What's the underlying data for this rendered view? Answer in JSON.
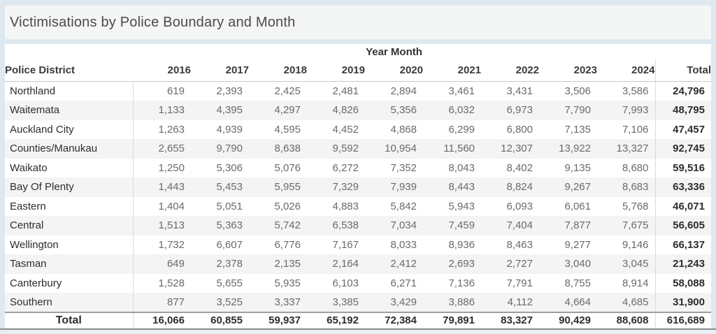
{
  "title": "Victimisations by Police Boundary and Month",
  "table": {
    "group_header": "Year Month",
    "district_header": "Police District",
    "year_columns": [
      "2016",
      "2017",
      "2018",
      "2019",
      "2020",
      "2021",
      "2022",
      "2023",
      "2024"
    ],
    "total_column_header": "Total",
    "rows": [
      {
        "district": "Northland",
        "values": [
          "619",
          "2,393",
          "2,425",
          "2,481",
          "2,894",
          "3,461",
          "3,431",
          "3,506",
          "3,586"
        ],
        "total": "24,796"
      },
      {
        "district": "Waitemata",
        "values": [
          "1,133",
          "4,395",
          "4,297",
          "4,826",
          "5,356",
          "6,032",
          "6,973",
          "7,790",
          "7,993"
        ],
        "total": "48,795"
      },
      {
        "district": "Auckland City",
        "values": [
          "1,263",
          "4,939",
          "4,595",
          "4,452",
          "4,868",
          "6,299",
          "6,800",
          "7,135",
          "7,106"
        ],
        "total": "47,457"
      },
      {
        "district": "Counties/Manukau",
        "values": [
          "2,655",
          "9,790",
          "8,638",
          "9,592",
          "10,954",
          "11,560",
          "12,307",
          "13,922",
          "13,327"
        ],
        "total": "92,745"
      },
      {
        "district": "Waikato",
        "values": [
          "1,250",
          "5,306",
          "5,076",
          "6,272",
          "7,352",
          "8,043",
          "8,402",
          "9,135",
          "8,680"
        ],
        "total": "59,516"
      },
      {
        "district": "Bay Of Plenty",
        "values": [
          "1,443",
          "5,453",
          "5,955",
          "7,329",
          "7,939",
          "8,443",
          "8,824",
          "9,267",
          "8,683"
        ],
        "total": "63,336"
      },
      {
        "district": "Eastern",
        "values": [
          "1,404",
          "5,051",
          "5,026",
          "4,883",
          "5,842",
          "5,943",
          "6,093",
          "6,061",
          "5,768"
        ],
        "total": "46,071"
      },
      {
        "district": "Central",
        "values": [
          "1,513",
          "5,363",
          "5,742",
          "6,538",
          "7,034",
          "7,459",
          "7,404",
          "7,877",
          "7,675"
        ],
        "total": "56,605"
      },
      {
        "district": "Wellington",
        "values": [
          "1,732",
          "6,607",
          "6,776",
          "7,167",
          "8,033",
          "8,936",
          "8,463",
          "9,277",
          "9,146"
        ],
        "total": "66,137"
      },
      {
        "district": "Tasman",
        "values": [
          "649",
          "2,378",
          "2,135",
          "2,164",
          "2,412",
          "2,693",
          "2,727",
          "3,040",
          "3,045"
        ],
        "total": "21,243"
      },
      {
        "district": "Canterbury",
        "values": [
          "1,528",
          "5,655",
          "5,935",
          "6,103",
          "6,271",
          "7,136",
          "7,791",
          "8,755",
          "8,914"
        ],
        "total": "58,088"
      },
      {
        "district": "Southern",
        "values": [
          "877",
          "3,525",
          "3,337",
          "3,385",
          "3,429",
          "3,886",
          "4,112",
          "4,664",
          "4,685"
        ],
        "total": "31,900"
      }
    ],
    "total_row": {
      "label": "Total",
      "values": [
        "16,066",
        "60,855",
        "59,937",
        "65,192",
        "72,384",
        "79,891",
        "83,327",
        "90,429",
        "88,608"
      ],
      "total": "616,689"
    }
  },
  "colors": {
    "page_bg": "#dee9ef",
    "panel_bg": "#f4f5f5",
    "row_band": "#f4f4f4",
    "grid_line": "#d9d9d9",
    "total_separator": "#9e9e9e",
    "bottom_border": "#8c8c8c"
  },
  "chart_data": {
    "type": "table",
    "title": "Victimisations by Police Boundary and Month",
    "column_group_label": "Year Month",
    "row_group_label": "Police District",
    "categories": [
      2016,
      2017,
      2018,
      2019,
      2020,
      2021,
      2022,
      2023,
      2024
    ],
    "series": [
      {
        "name": "Northland",
        "values": [
          619,
          2393,
          2425,
          2481,
          2894,
          3461,
          3431,
          3506,
          3586
        ],
        "total": 24796
      },
      {
        "name": "Waitemata",
        "values": [
          1133,
          4395,
          4297,
          4826,
          5356,
          6032,
          6973,
          7790,
          7993
        ],
        "total": 48795
      },
      {
        "name": "Auckland City",
        "values": [
          1263,
          4939,
          4595,
          4452,
          4868,
          6299,
          6800,
          7135,
          7106
        ],
        "total": 47457
      },
      {
        "name": "Counties/Manukau",
        "values": [
          2655,
          9790,
          8638,
          9592,
          10954,
          11560,
          12307,
          13922,
          13327
        ],
        "total": 92745
      },
      {
        "name": "Waikato",
        "values": [
          1250,
          5306,
          5076,
          6272,
          7352,
          8043,
          8402,
          9135,
          8680
        ],
        "total": 59516
      },
      {
        "name": "Bay Of Plenty",
        "values": [
          1443,
          5453,
          5955,
          7329,
          7939,
          8443,
          8824,
          9267,
          8683
        ],
        "total": 63336
      },
      {
        "name": "Eastern",
        "values": [
          1404,
          5051,
          5026,
          4883,
          5842,
          5943,
          6093,
          6061,
          5768
        ],
        "total": 46071
      },
      {
        "name": "Central",
        "values": [
          1513,
          5363,
          5742,
          6538,
          7034,
          7459,
          7404,
          7877,
          7675
        ],
        "total": 56605
      },
      {
        "name": "Wellington",
        "values": [
          1732,
          6607,
          6776,
          7167,
          8033,
          8936,
          8463,
          9277,
          9146
        ],
        "total": 66137
      },
      {
        "name": "Tasman",
        "values": [
          649,
          2378,
          2135,
          2164,
          2412,
          2693,
          2727,
          3040,
          3045
        ],
        "total": 21243
      },
      {
        "name": "Canterbury",
        "values": [
          1528,
          5655,
          5935,
          6103,
          6271,
          7136,
          7791,
          8755,
          8914
        ],
        "total": 58088
      },
      {
        "name": "Southern",
        "values": [
          877,
          3525,
          3337,
          3385,
          3429,
          3886,
          4112,
          4664,
          4685
        ],
        "total": 31900
      }
    ],
    "grand_total_row": {
      "name": "Total",
      "values": [
        16066,
        60855,
        59937,
        65192,
        72384,
        79891,
        83327,
        90429,
        88608
      ],
      "total": 616689
    }
  }
}
